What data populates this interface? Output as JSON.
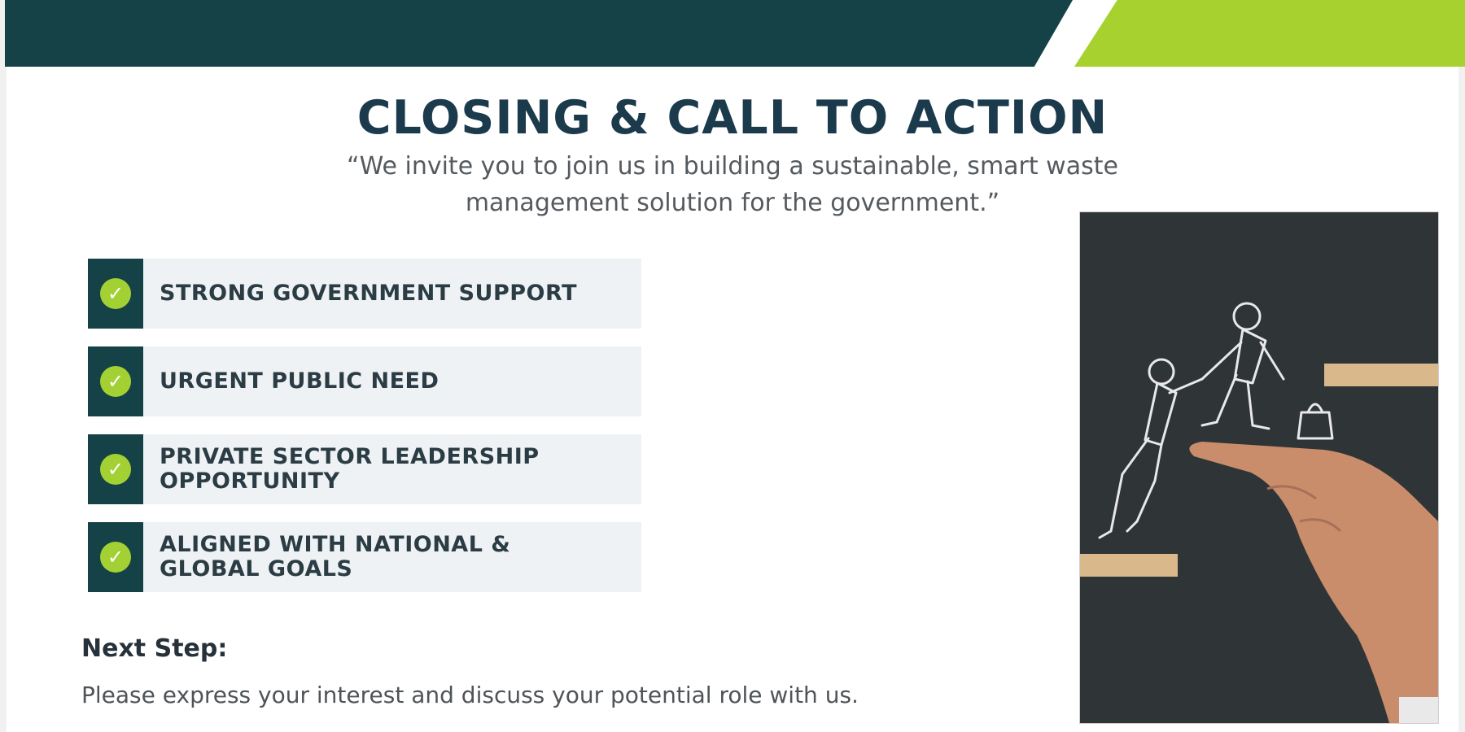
{
  "slide": {
    "title": "CLOSING & CALL TO ACTION",
    "quote_line1": "“We invite you to join us in building a sustainable, smart waste",
    "quote_line2": "management solution for the government.”"
  },
  "points": [
    {
      "text": "STRONG GOVERNMENT SUPPORT",
      "icon": "check-circle-icon"
    },
    {
      "text": "URGENT PUBLIC NEED",
      "icon": "check-circle-icon"
    },
    {
      "text": "PRIVATE SECTOR LEADERSHIP\nOPPORTUNITY",
      "icon": "check-circle-icon"
    },
    {
      "text": "ALIGNED WITH NATIONAL &\nGLOBAL GOALS",
      "icon": "check-circle-icon"
    }
  ],
  "next_step": {
    "heading": "Next Step:",
    "body": "Please express your interest and discuss your potential role with us."
  },
  "colors": {
    "dark_teal": "#144247",
    "lime_green": "#a6d12e",
    "title_navy": "#1b3a4b",
    "point_background": "#eef2f4"
  },
  "image": {
    "icon": "helping-hand-chalk-illustration"
  }
}
